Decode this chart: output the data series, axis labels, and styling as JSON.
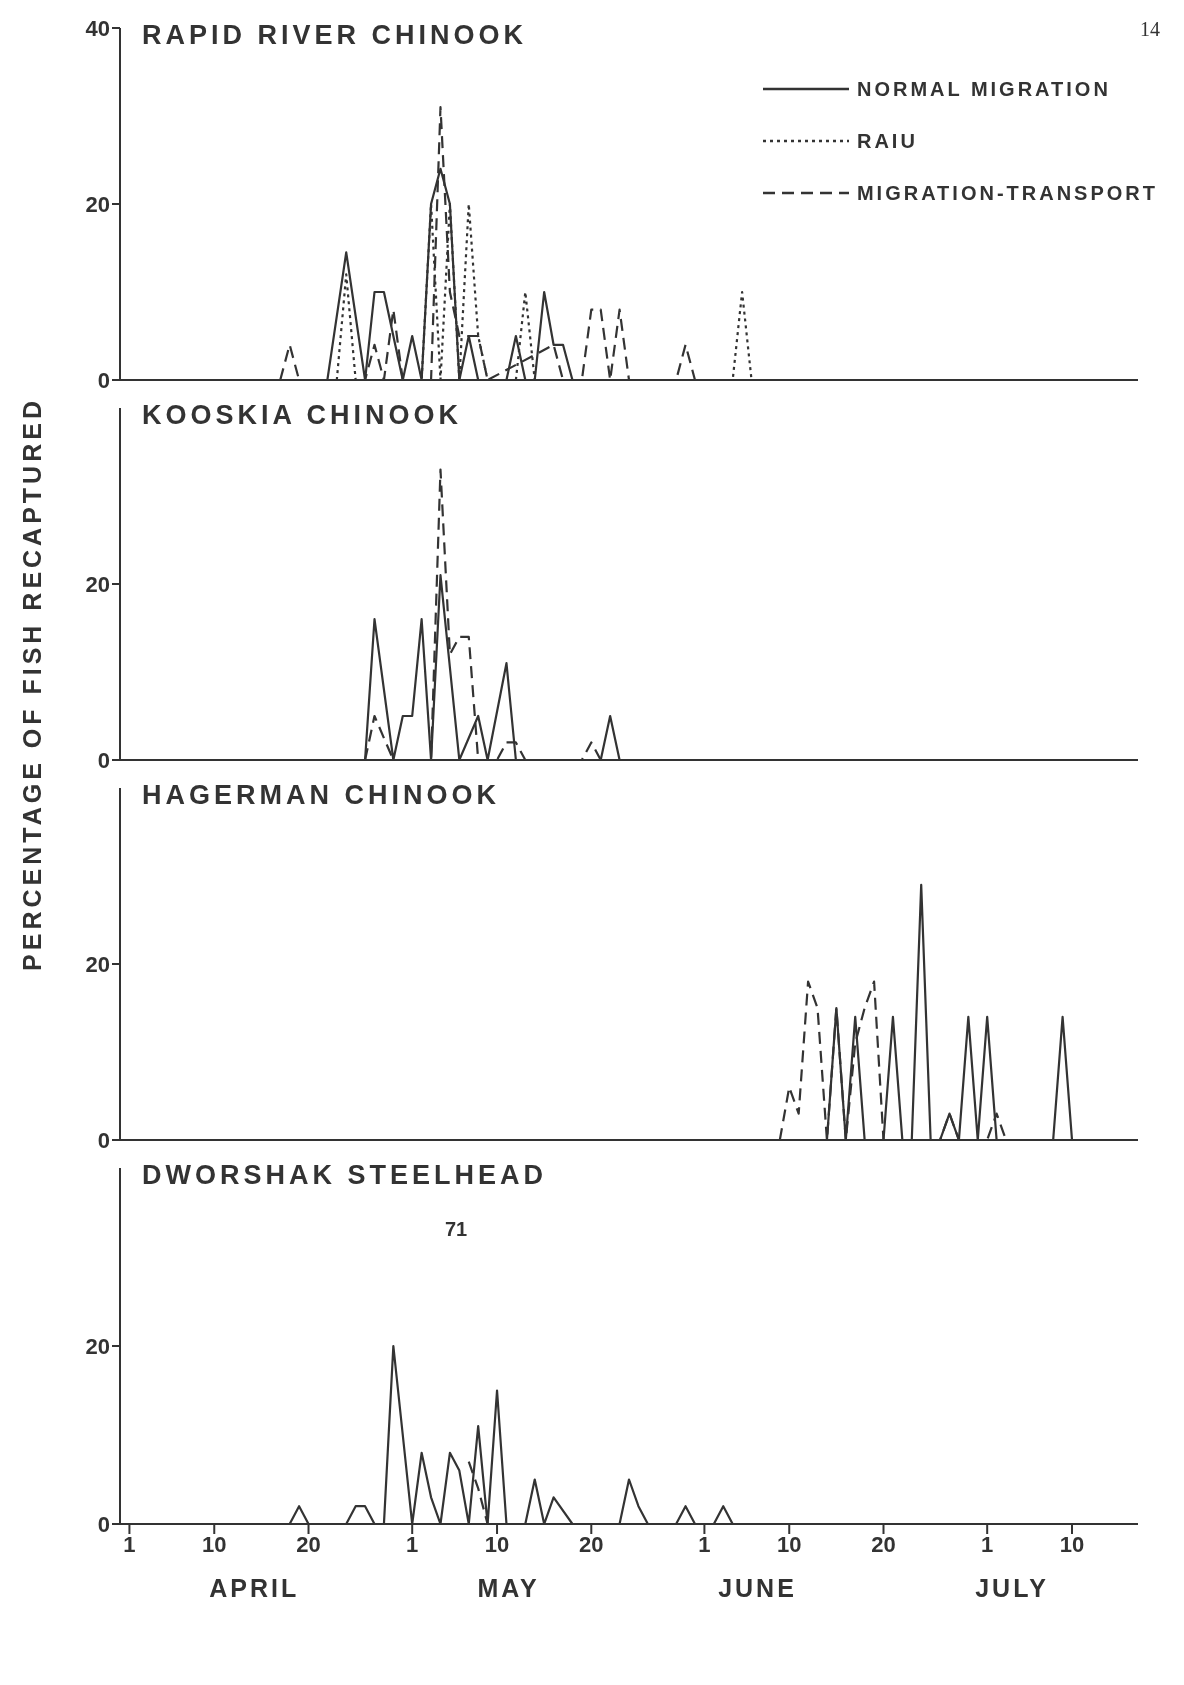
{
  "chart_data": [
    {
      "type": "line",
      "title": "RAPID RIVER CHINOOK",
      "ylabel": "PERCENTAGE OF FISH RECAPTURED",
      "legend": "top right",
      "annotations": [
        "14"
      ],
      "tick_labels": "y",
      "xlim": [
        "--03-31",
        "--07-17"
      ],
      "ylim": [
        0,
        40
      ],
      "yticks": [
        0,
        20,
        40
      ],
      "xticks": [
        {
          "value": "--04-01",
          "label": "1"
        },
        {
          "value": "--04-10",
          "label": "10"
        },
        {
          "value": "--04-20",
          "label": "20"
        },
        {
          "value": "--05-01",
          "label": "1"
        },
        {
          "value": "--05-10",
          "label": "10"
        },
        {
          "value": "--05-20",
          "label": "20"
        },
        {
          "value": "--06-01",
          "label": "1"
        },
        {
          "value": "--06-10",
          "label": "10"
        },
        {
          "value": "--06-20",
          "label": "20"
        },
        {
          "value": "--07-01",
          "label": "1"
        },
        {
          "value": "--07-10",
          "label": "10"
        }
      ],
      "series": [
        {
          "name": "NORMAL MIGRATION",
          "color": "#333333",
          "line_style": "solid",
          "x": [
            "--04-22",
            "--04-24",
            "--04-26",
            "--04-27",
            "--04-28",
            "--04-30",
            "--05-01",
            "--05-02",
            "--05-03",
            "--05-04",
            "--05-05",
            "--05-06",
            "--05-07",
            "--05-08",
            "--05-11",
            "--05-12",
            "--05-13",
            "--05-14",
            "--05-15",
            "--05-16",
            "--05-17",
            "--05-18"
          ],
          "values": [
            0,
            14.5,
            0,
            10,
            10,
            0,
            5,
            0,
            20,
            24,
            20,
            0,
            5,
            0,
            0,
            5,
            0,
            0,
            10,
            4,
            4,
            0
          ]
        },
        {
          "name": "RAIU",
          "color": "#333333",
          "line_style": "dotted",
          "x": [
            "--04-23",
            "--04-24",
            "--04-25",
            "--05-02",
            "--05-03",
            "--05-04",
            "--05-05",
            "--05-06",
            "--05-07",
            "--05-08",
            "--05-09",
            "--05-12",
            "--05-13",
            "--05-14",
            "--06-04",
            "--06-05",
            "--06-06"
          ],
          "values": [
            0,
            12,
            0,
            0,
            20,
            0,
            20,
            0,
            20,
            5,
            0,
            0,
            10,
            0,
            0,
            10,
            0
          ]
        },
        {
          "name": "MIGRATION-TRANSPORT",
          "color": "#333333",
          "line_style": "dashed",
          "x": [
            "--04-17",
            "--04-18",
            "--04-19",
            "--04-26",
            "--04-27",
            "--04-28",
            "--04-29",
            "--04-30",
            "--05-03",
            "--05-04",
            "--05-05",
            "--05-06",
            "--05-07",
            "--05-08",
            "--05-09",
            "--05-16",
            "--05-17",
            "--05-19",
            "--05-20",
            "--05-21",
            "--05-22",
            "--05-23",
            "--05-24",
            "--05-29",
            "--05-30",
            "--05-31"
          ],
          "values": [
            0,
            4,
            0,
            0,
            4,
            0,
            8,
            0,
            0,
            31,
            10,
            5,
            5,
            5,
            0,
            4,
            0,
            0,
            8,
            8,
            0,
            8,
            0,
            0,
            4,
            0
          ]
        }
      ]
    },
    {
      "type": "line",
      "title": "KOOSKIA CHINOOK",
      "tick_labels": "y",
      "xlim": [
        "--03-31",
        "--07-17"
      ],
      "ylim": [
        0,
        40
      ],
      "yticks": [
        0,
        20
      ],
      "xticks": [
        {
          "value": "--04-01",
          "label": "1"
        },
        {
          "value": "--04-10",
          "label": "10"
        },
        {
          "value": "--04-20",
          "label": "20"
        },
        {
          "value": "--05-01",
          "label": "1"
        },
        {
          "value": "--05-10",
          "label": "10"
        },
        {
          "value": "--05-20",
          "label": "20"
        },
        {
          "value": "--06-01",
          "label": "1"
        },
        {
          "value": "--06-10",
          "label": "10"
        },
        {
          "value": "--06-20",
          "label": "20"
        },
        {
          "value": "--07-01",
          "label": "1"
        },
        {
          "value": "--07-10",
          "label": "10"
        }
      ],
      "series": [
        {
          "color": "#333333",
          "line_style": "solid",
          "x": [
            "--04-26",
            "--04-27",
            "--04-29",
            "--04-30",
            "--05-01",
            "--05-02",
            "--05-03",
            "--05-04",
            "--05-06",
            "--05-08",
            "--05-09",
            "--05-11",
            "--05-12",
            "--05-21",
            "--05-22",
            "--05-23"
          ],
          "values": [
            0,
            16,
            0,
            5,
            5,
            16,
            0,
            21,
            0,
            5,
            0,
            11,
            0,
            0,
            5,
            0
          ]
        },
        {
          "color": "#333333",
          "line_style": "dashed",
          "x": [
            "--04-26",
            "--04-27",
            "--04-29",
            "--05-03",
            "--05-04",
            "--05-05",
            "--05-06",
            "--05-07",
            "--05-08",
            "--05-10",
            "--05-11",
            "--05-12",
            "--05-13",
            "--05-19",
            "--05-20",
            "--05-21"
          ],
          "values": [
            0,
            5,
            0,
            0,
            33,
            12,
            14,
            14,
            0,
            0,
            2,
            2,
            0,
            0,
            2,
            0
          ]
        }
      ]
    },
    {
      "type": "line",
      "title": "HAGERMAN CHINOOK",
      "tick_labels": "y",
      "xlim": [
        "--03-31",
        "--07-17"
      ],
      "ylim": [
        0,
        40
      ],
      "yticks": [
        0,
        20
      ],
      "xticks": [
        {
          "value": "--04-01",
          "label": "1"
        },
        {
          "value": "--04-10",
          "label": "10"
        },
        {
          "value": "--04-20",
          "label": "20"
        },
        {
          "value": "--05-01",
          "label": "1"
        },
        {
          "value": "--05-10",
          "label": "10"
        },
        {
          "value": "--05-20",
          "label": "20"
        },
        {
          "value": "--06-01",
          "label": "1"
        },
        {
          "value": "--06-10",
          "label": "10"
        },
        {
          "value": "--06-20",
          "label": "20"
        },
        {
          "value": "--07-01",
          "label": "1"
        },
        {
          "value": "--07-10",
          "label": "10"
        }
      ],
      "series": [
        {
          "color": "#333333",
          "line_style": "solid",
          "x": [
            "--06-14",
            "--06-15",
            "--06-16",
            "--06-17",
            "--06-18",
            "--06-20",
            "--06-21",
            "--06-22",
            "--06-23",
            "--06-24",
            "--06-25",
            "--06-26",
            "--06-27",
            "--06-28",
            "--06-29",
            "--06-30",
            "--07-01",
            "--07-02",
            "--07-08",
            "--07-09",
            "--07-10"
          ],
          "values": [
            0,
            15,
            0,
            14,
            0,
            0,
            14,
            0,
            0,
            29,
            0,
            0,
            3,
            0,
            14,
            0,
            14,
            0,
            0,
            14,
            0
          ]
        },
        {
          "color": "#333333",
          "line_style": "dashed",
          "x": [
            "--06-09",
            "--06-10",
            "--06-11",
            "--06-12",
            "--06-13",
            "--06-14",
            "--06-15",
            "--06-16",
            "--06-17",
            "--06-18",
            "--06-19",
            "--06-20",
            "--06-26",
            "--06-27",
            "--06-28",
            "--07-01",
            "--07-02",
            "--07-03"
          ],
          "values": [
            0,
            6,
            3,
            18,
            15,
            0,
            15,
            0,
            11,
            15,
            18,
            0,
            0,
            3,
            0,
            0,
            3,
            0
          ]
        }
      ]
    },
    {
      "type": "line",
      "title": "DWORSHAK STEELHEAD",
      "xlabel": "APRIL MAY JUNE JULY",
      "annotations": [
        "71"
      ],
      "xlim": [
        "--03-31",
        "--07-17"
      ],
      "ylim": [
        0,
        40
      ],
      "yticks": [
        0,
        20
      ],
      "xticks": [
        {
          "value": "--04-01",
          "label": "1"
        },
        {
          "value": "--04-10",
          "label": "10"
        },
        {
          "value": "--04-20",
          "label": "20"
        },
        {
          "value": "--05-01",
          "label": "1"
        },
        {
          "value": "--05-10",
          "label": "10"
        },
        {
          "value": "--05-20",
          "label": "20"
        },
        {
          "value": "--06-01",
          "label": "1"
        },
        {
          "value": "--06-10",
          "label": "10"
        },
        {
          "value": "--06-20",
          "label": "20"
        },
        {
          "value": "--07-01",
          "label": "1"
        },
        {
          "value": "--07-10",
          "label": "10"
        }
      ],
      "series": [
        {
          "color": "#333333",
          "line_style": "solid",
          "x": [
            "--04-18",
            "--04-19",
            "--04-20",
            "--04-24",
            "--04-25",
            "--04-26",
            "--04-27",
            "--04-28",
            "--04-29",
            "--05-01",
            "--05-02",
            "--05-03",
            "--05-04",
            "--05-05",
            "--05-06",
            "--05-07",
            "--05-08",
            "--05-09",
            "--05-10",
            "--05-11",
            "--05-13",
            "--05-14",
            "--05-15",
            "--05-16",
            "--05-18",
            "--05-23",
            "--05-24",
            "--05-25",
            "--05-26",
            "--05-29",
            "--05-30",
            "--05-31",
            "--06-02",
            "--06-03",
            "--06-04"
          ],
          "values": [
            0,
            2,
            0,
            0,
            2,
            2,
            0,
            0,
            20,
            0,
            8,
            3,
            0,
            8,
            6,
            0,
            11,
            0,
            15,
            0,
            0,
            5,
            0,
            3,
            0,
            0,
            5,
            2,
            0,
            0,
            2,
            0,
            0,
            2,
            0
          ]
        },
        {
          "color": "#333333",
          "line_style": "dashed",
          "x": [
            "--05-07",
            "--05-08",
            "--05-09"
          ],
          "values": [
            7,
            4,
            0
          ]
        }
      ]
    }
  ]
}
